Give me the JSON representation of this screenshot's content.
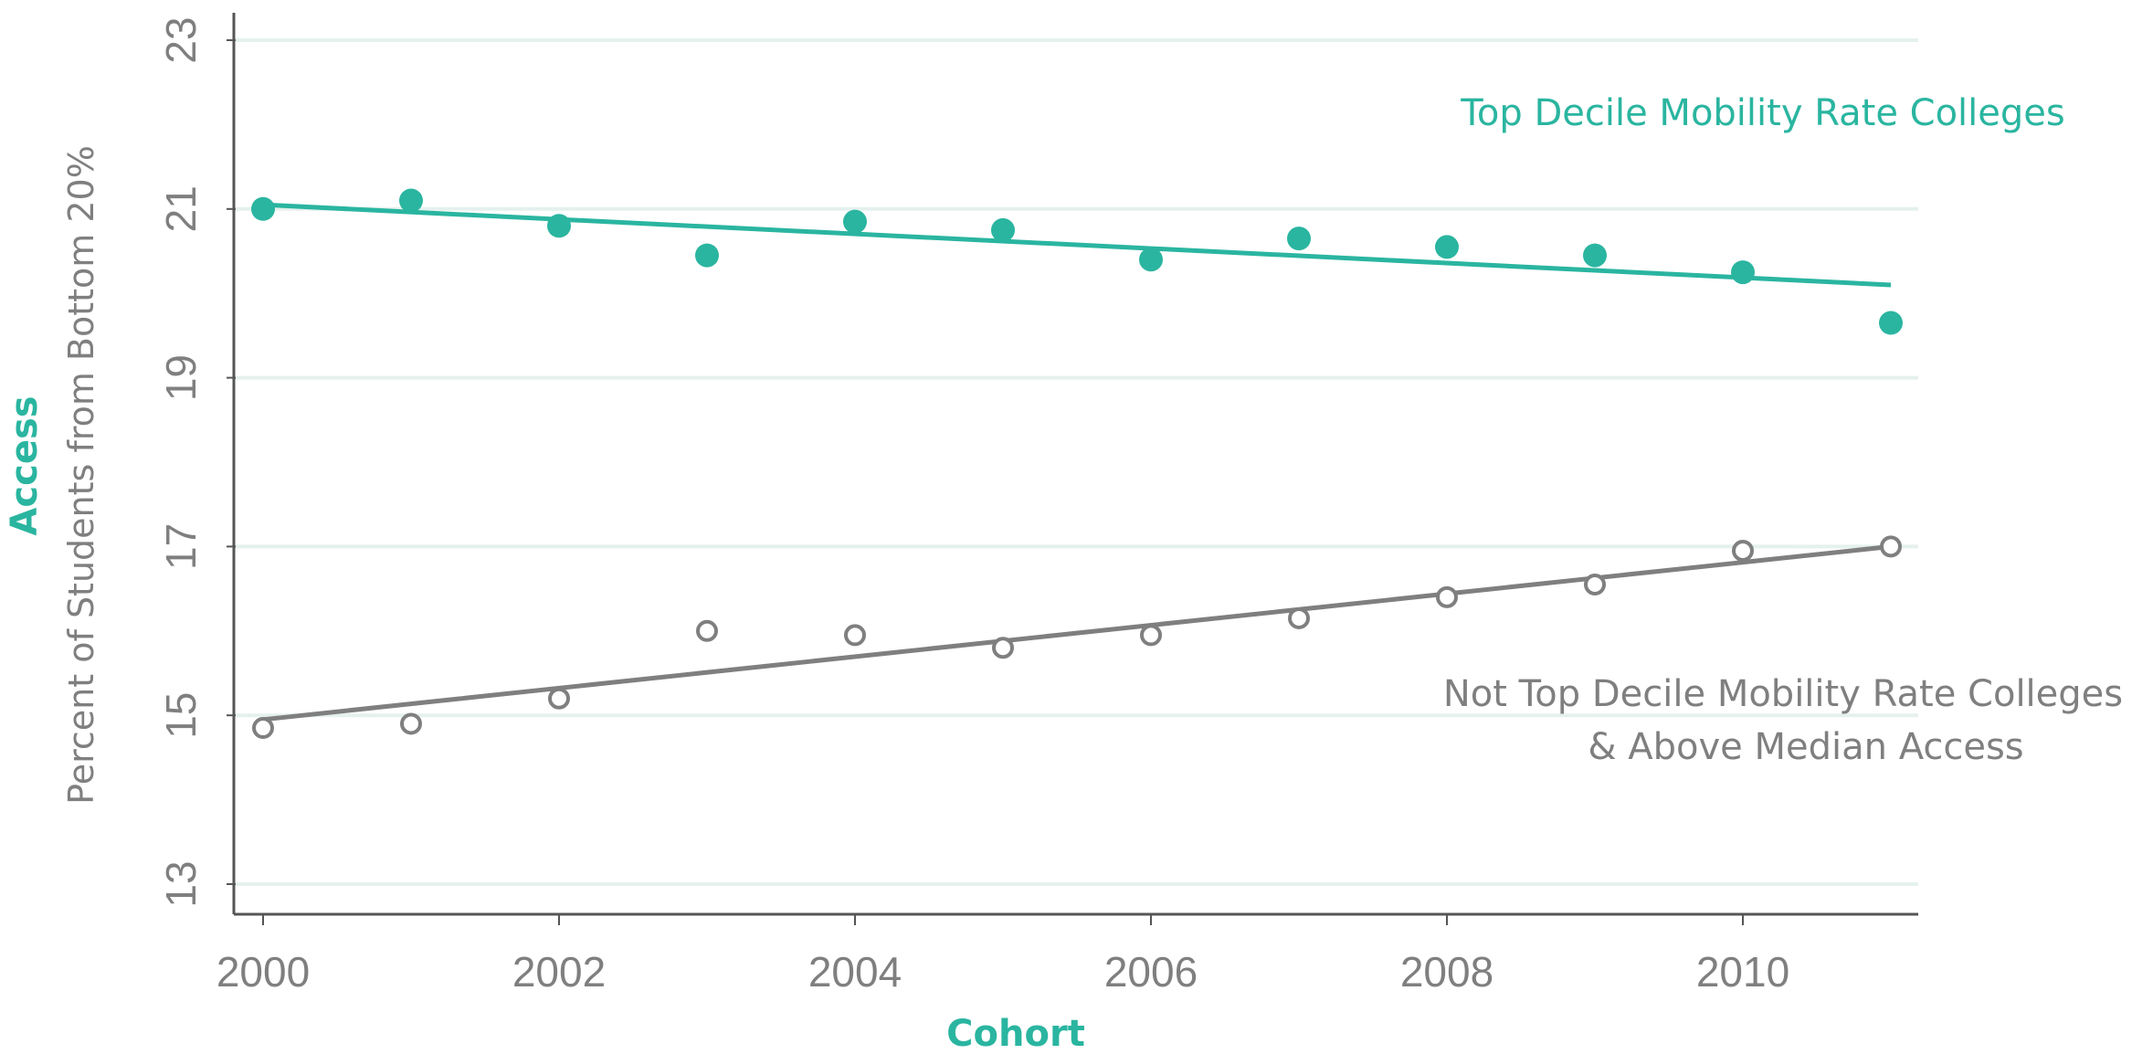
{
  "chart_data": {
    "type": "scatter",
    "xlabel": "Cohort",
    "ylabel_main": "Access",
    "ylabel_sub": "Percent of Students from Bottom 20%",
    "xlim": [
      2000,
      2011
    ],
    "ylim": [
      12.6,
      23
    ],
    "xticks": [
      2000,
      2002,
      2004,
      2006,
      2008,
      2010
    ],
    "yticks": [
      13,
      15,
      17,
      19,
      21,
      23
    ],
    "grid": "horizontal",
    "colors": {
      "accent": "#2ab5a0",
      "gray": "#7f7f7f",
      "grid": "#e5f1ee",
      "axis": "#555555"
    },
    "series": [
      {
        "name": "Top Decile Mobility Rate Colleges",
        "marker": "filled-circle",
        "color": "#2ab5a0",
        "x": [
          2000,
          2001,
          2002,
          2003,
          2004,
          2005,
          2006,
          2007,
          2008,
          2009,
          2010,
          2011
        ],
        "y": [
          21.0,
          21.1,
          20.8,
          20.45,
          20.85,
          20.75,
          20.4,
          20.65,
          20.55,
          20.45,
          20.25,
          19.65
        ],
        "fit": {
          "x": [
            2000,
            2011
          ],
          "y": [
            21.05,
            20.1
          ]
        }
      },
      {
        "name_lines": [
          "Not Top Decile Mobility Rate Colleges",
          "& Above Median Access"
        ],
        "marker": "open-circle",
        "color": "#7f7f7f",
        "x": [
          2000,
          2001,
          2002,
          2003,
          2004,
          2005,
          2006,
          2007,
          2008,
          2009,
          2010,
          2011
        ],
        "y": [
          14.85,
          14.9,
          15.2,
          16.0,
          15.95,
          15.8,
          15.95,
          16.15,
          16.4,
          16.55,
          16.95,
          17.0
        ],
        "fit": {
          "x": [
            2000,
            2011
          ],
          "y": [
            14.95,
            17.0
          ]
        }
      }
    ]
  }
}
